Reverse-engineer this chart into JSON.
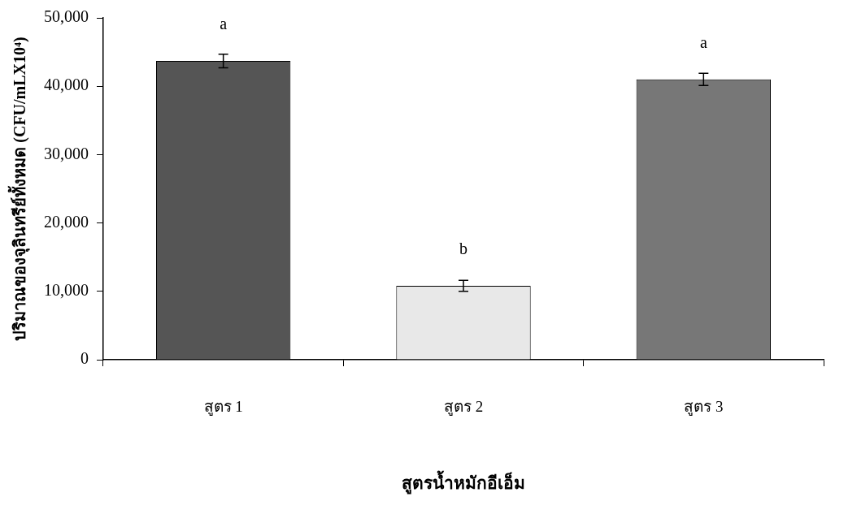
{
  "chart_data": {
    "type": "bar",
    "xlabel": "สูตรน้ำหมักอีเอ็ม",
    "ylabel": "ปริมาณของจุลินทรีย์ทั้งหมด (CFU/mLX10⁴)",
    "categories": [
      "สูตร 1",
      "สูตร 2",
      "สูตร 3"
    ],
    "values": [
      43700,
      10800,
      41000
    ],
    "errors": [
      1000,
      800,
      900
    ],
    "colors": [
      "#555555",
      "#e8e8e8",
      "#777777"
    ],
    "ylim": [
      0,
      50000
    ],
    "yticks": [
      {
        "value": 0,
        "label": "0"
      },
      {
        "value": 10000,
        "label": "10,000"
      },
      {
        "value": 20000,
        "label": "20,000"
      },
      {
        "value": 30000,
        "label": "30,000"
      },
      {
        "value": 40000,
        "label": "40,000"
      },
      {
        "value": 50000,
        "label": "50,000"
      }
    ],
    "grid": false,
    "legend": false,
    "annotations": [
      {
        "text": "a",
        "x": "สูตร 1",
        "y": 43700
      },
      {
        "text": "b",
        "x": "สูตร 2",
        "y": 10800
      },
      {
        "text": "a",
        "x": "สูตร 3",
        "y": 41000
      }
    ]
  }
}
